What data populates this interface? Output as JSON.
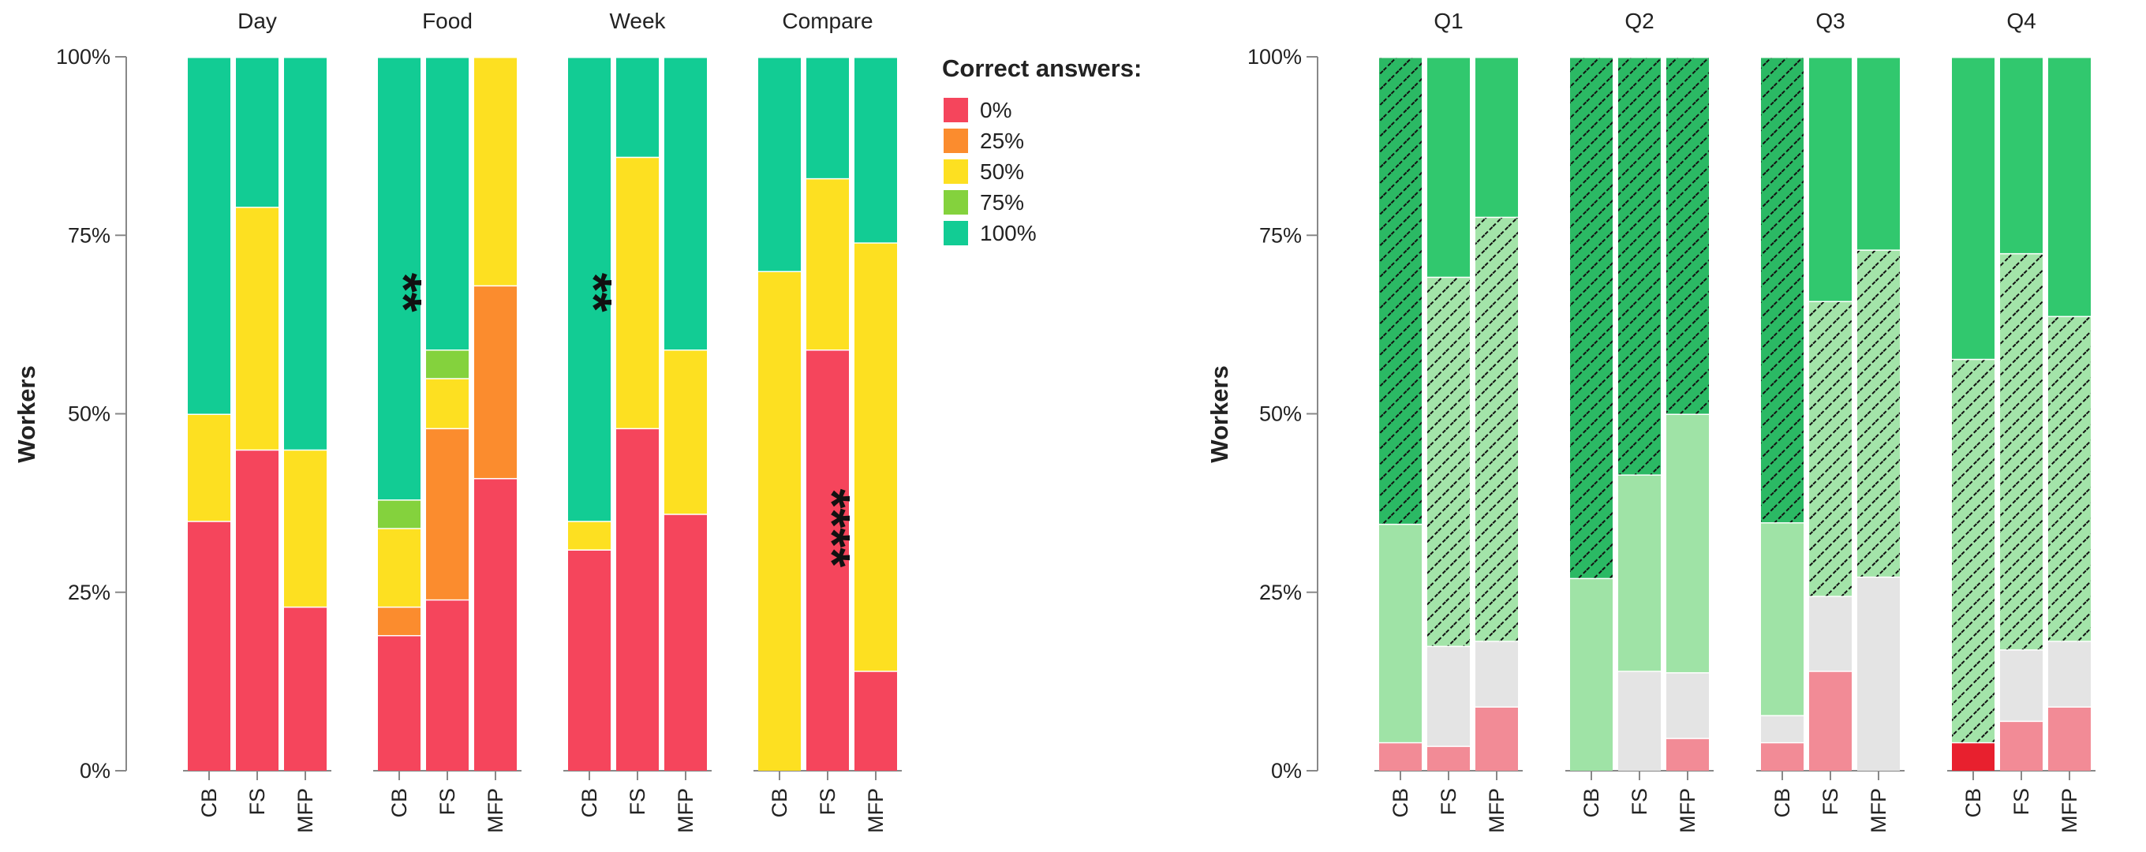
{
  "chart_data": [
    {
      "type": "stacked-bar",
      "ylabel": "Workers",
      "yticks": [
        "0%",
        "25%",
        "50%",
        "75%",
        "100%"
      ],
      "categories": [
        "CB",
        "FS",
        "MFP"
      ],
      "legend": {
        "title": "Correct answers:",
        "items": [
          {
            "label": "0%",
            "color": "#f5455c"
          },
          {
            "label": "25%",
            "color": "#fb8c2e"
          },
          {
            "label": "50%",
            "color": "#fde021"
          },
          {
            "label": "75%",
            "color": "#84d23d"
          },
          {
            "label": "100%",
            "color": "#12cc94"
          }
        ]
      },
      "panels": [
        {
          "title": "Day",
          "bars": [
            {
              "category": "CB",
              "segments": [
                35,
                0,
                15,
                0,
                50
              ]
            },
            {
              "category": "FS",
              "segments": [
                45,
                0,
                34,
                0,
                21
              ]
            },
            {
              "category": "MFP",
              "segments": [
                23,
                0,
                22,
                0,
                55
              ]
            }
          ],
          "annotations": []
        },
        {
          "title": "Food",
          "bars": [
            {
              "category": "CB",
              "segments": [
                19,
                4,
                11,
                4,
                62
              ]
            },
            {
              "category": "FS",
              "segments": [
                24,
                24,
                7,
                4,
                41
              ]
            },
            {
              "category": "MFP",
              "segments": [
                41,
                27,
                32,
                0,
                0
              ]
            }
          ],
          "annotations": [
            {
              "category": "CB",
              "text": "**",
              "at": 67
            }
          ]
        },
        {
          "title": "Week",
          "bars": [
            {
              "category": "CB",
              "segments": [
                31,
                0,
                4,
                0,
                65
              ]
            },
            {
              "category": "FS",
              "segments": [
                48,
                0,
                38,
                0,
                14
              ]
            },
            {
              "category": "MFP",
              "segments": [
                36,
                0,
                23,
                0,
                41
              ]
            }
          ],
          "annotations": [
            {
              "category": "CB",
              "text": "**",
              "at": 67
            }
          ]
        },
        {
          "title": "Compare",
          "bars": [
            {
              "category": "CB",
              "segments": [
                0,
                0,
                70,
                0,
                30
              ]
            },
            {
              "category": "FS",
              "segments": [
                59,
                0,
                24,
                0,
                17
              ]
            },
            {
              "category": "MFP",
              "segments": [
                14,
                0,
                60,
                0,
                26
              ]
            }
          ],
          "annotations": [
            {
              "category": "FS",
              "text": "****",
              "at": 34
            }
          ]
        }
      ]
    },
    {
      "type": "stacked-bar",
      "ylabel": "Workers",
      "yticks": [
        "0%",
        "25%",
        "50%",
        "75%",
        "100%"
      ],
      "categories": [
        "CB",
        "FS",
        "MFP"
      ],
      "segment_styles": [
        {
          "fill": "#e8202e",
          "hatch": false
        },
        {
          "fill": "#f28b96",
          "hatch": false
        },
        {
          "fill": "#e4e4e4",
          "hatch": false
        },
        {
          "fill": "#9fe3a6",
          "hatch": false
        },
        {
          "fill": "#a3e4a9",
          "hatch": true
        },
        {
          "fill": "#31c86e",
          "hatch": false
        },
        {
          "fill": "#2bb964",
          "hatch": true
        }
      ],
      "panels": [
        {
          "title": "Q1",
          "bars": [
            {
              "category": "CB",
              "segments": [
                0,
                4,
                0,
                30.6,
                0,
                0,
                65.4
              ]
            },
            {
              "category": "FS",
              "segments": [
                0,
                3.5,
                14,
                0,
                51.7,
                30.8,
                0
              ]
            },
            {
              "category": "MFP",
              "segments": [
                0,
                9,
                9.2,
                0,
                59.4,
                22.4,
                0
              ]
            }
          ]
        },
        {
          "title": "Q2",
          "bars": [
            {
              "category": "CB",
              "segments": [
                0,
                0,
                0,
                27,
                0,
                0,
                73
              ]
            },
            {
              "category": "FS",
              "segments": [
                0,
                0,
                14,
                27.5,
                0,
                0,
                58.5
              ]
            },
            {
              "category": "MFP",
              "segments": [
                0,
                4.6,
                9.2,
                36.2,
                0,
                0,
                50
              ]
            }
          ]
        },
        {
          "title": "Q3",
          "bars": [
            {
              "category": "CB",
              "segments": [
                0,
                4,
                3.8,
                27,
                0,
                0,
                65.2
              ]
            },
            {
              "category": "FS",
              "segments": [
                0,
                14,
                10.5,
                0,
                41.3,
                34.2,
                0
              ]
            },
            {
              "category": "MFP",
              "segments": [
                0,
                0,
                27.2,
                0,
                45.8,
                27,
                0
              ]
            }
          ]
        },
        {
          "title": "Q4",
          "bars": [
            {
              "category": "CB",
              "segments": [
                4,
                0,
                0,
                0,
                53.7,
                42.3,
                0
              ]
            },
            {
              "category": "FS",
              "segments": [
                0,
                7,
                10,
                0,
                55.5,
                27.5,
                0
              ]
            },
            {
              "category": "MFP",
              "segments": [
                0,
                9,
                9.2,
                0,
                45.5,
                36.3,
                0
              ]
            }
          ]
        }
      ]
    }
  ]
}
